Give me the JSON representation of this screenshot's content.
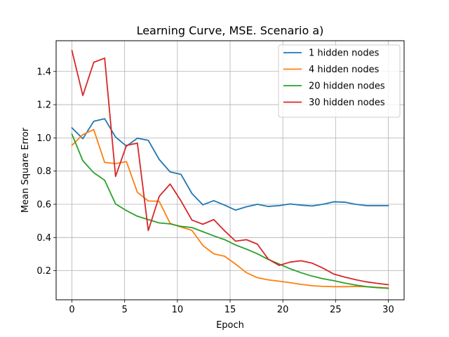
{
  "chart_data": {
    "type": "line",
    "title": "Learning Curve, MSE. Scenario a)",
    "xlabel": "Epoch",
    "ylabel": "Mean Square Error",
    "xlim": [
      -1.5,
      31.5
    ],
    "ylim": [
      0.025,
      1.585
    ],
    "xticks": [
      0,
      5,
      10,
      15,
      20,
      25,
      30
    ],
    "yticks": [
      0.2,
      0.4,
      0.6,
      0.8,
      1.0,
      1.2,
      1.4
    ],
    "ytick_labels": [
      "0.2",
      "0.4",
      "0.6",
      "0.8",
      "1.0",
      "1.2",
      "1.4"
    ],
    "grid": true,
    "legend_position": "upper right",
    "series": [
      {
        "name": "1 hidden nodes",
        "color": "#1f77b4",
        "x": [
          0,
          1.034,
          2.069,
          3.103,
          4.138,
          5.172,
          6.207,
          7.241,
          8.276,
          9.31,
          10.345,
          11.379,
          12.414,
          13.448,
          14.483,
          15.517,
          16.552,
          17.586,
          18.621,
          19.655,
          20.69,
          21.724,
          22.759,
          23.793,
          24.828,
          25.862,
          26.897,
          27.931,
          28.966,
          30
        ],
        "y": [
          1.06,
          0.995,
          1.1,
          1.115,
          1.005,
          0.95,
          0.998,
          0.985,
          0.87,
          0.795,
          0.78,
          0.665,
          0.597,
          0.622,
          0.595,
          0.565,
          0.585,
          0.6,
          0.587,
          0.592,
          0.602,
          0.595,
          0.59,
          0.6,
          0.615,
          0.613,
          0.6,
          0.592,
          0.592,
          0.592
        ]
      },
      {
        "name": "4 hidden nodes",
        "color": "#ff7f0e",
        "x": [
          0,
          1.034,
          2.069,
          3.103,
          4.138,
          5.172,
          6.207,
          7.241,
          8.276,
          9.31,
          10.345,
          11.379,
          12.414,
          13.448,
          14.483,
          15.517,
          16.552,
          17.586,
          18.621,
          19.655,
          20.69,
          21.724,
          22.759,
          23.793,
          24.828,
          25.862,
          26.897,
          27.931,
          28.966,
          30
        ],
        "y": [
          0.955,
          1.02,
          1.05,
          0.852,
          0.845,
          0.857,
          0.672,
          0.62,
          0.618,
          0.485,
          0.463,
          0.443,
          0.352,
          0.302,
          0.287,
          0.24,
          0.188,
          0.158,
          0.145,
          0.137,
          0.128,
          0.118,
          0.11,
          0.106,
          0.104,
          0.104,
          0.105,
          0.104,
          0.1,
          0.096
        ]
      },
      {
        "name": "20 hidden nodes",
        "color": "#2ca02c",
        "x": [
          0,
          1.034,
          2.069,
          3.103,
          4.138,
          5.172,
          6.207,
          7.241,
          8.276,
          9.31,
          10.345,
          11.379,
          12.414,
          13.448,
          14.483,
          15.517,
          16.552,
          17.586,
          18.621,
          19.655,
          20.69,
          21.724,
          22.759,
          23.793,
          24.828,
          25.862,
          26.897,
          27.931,
          28.966,
          30
        ],
        "y": [
          1.022,
          0.862,
          0.79,
          0.745,
          0.602,
          0.562,
          0.528,
          0.508,
          0.488,
          0.482,
          0.467,
          0.46,
          0.435,
          0.41,
          0.387,
          0.355,
          0.33,
          0.302,
          0.268,
          0.24,
          0.212,
          0.188,
          0.168,
          0.152,
          0.14,
          0.126,
          0.114,
          0.104,
          0.098,
          0.094
        ]
      },
      {
        "name": "30 hidden nodes",
        "color": "#d62728",
        "x": [
          0,
          1.034,
          2.069,
          3.103,
          4.138,
          5.172,
          6.207,
          7.241,
          8.276,
          9.31,
          10.345,
          11.379,
          12.414,
          13.448,
          14.483,
          15.517,
          16.552,
          17.586,
          18.621,
          19.655,
          20.69,
          21.724,
          22.759,
          23.793,
          24.828,
          25.862,
          26.897,
          27.931,
          28.966,
          30
        ],
        "y": [
          1.525,
          1.255,
          1.455,
          1.48,
          0.768,
          0.955,
          0.968,
          0.442,
          0.648,
          0.722,
          0.62,
          0.505,
          0.48,
          0.508,
          0.44,
          0.378,
          0.387,
          0.36,
          0.27,
          0.232,
          0.252,
          0.26,
          0.246,
          0.216,
          0.18,
          0.162,
          0.146,
          0.133,
          0.124,
          0.116
        ]
      }
    ]
  }
}
